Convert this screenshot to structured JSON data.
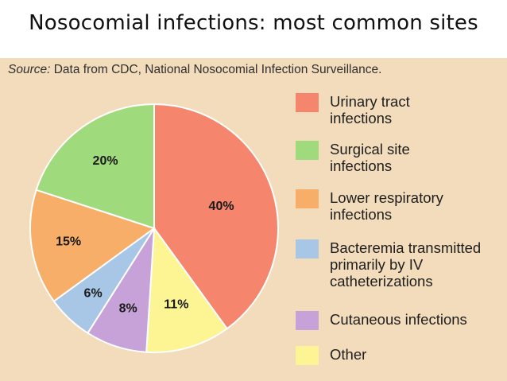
{
  "title": "Nosocomial infections: most common sites",
  "source": {
    "lead": "Source:",
    "text": "Data from CDC, National Nosocomial Infection Surveillance."
  },
  "chart_data": {
    "type": "pie",
    "title": "Nosocomial infections: most common sites",
    "categories": [
      "Urinary tract infections",
      "Other",
      "Cutaneous infections",
      "Bacteremia transmitted primarily by IV catheterizations",
      "Lower respiratory infections",
      "Surgical site infections"
    ],
    "values": [
      40,
      11,
      8,
      6,
      15,
      20
    ],
    "value_labels": [
      "40%",
      "11%",
      "8%",
      "6%",
      "15%",
      "20%"
    ],
    "colors": [
      "#f5856c",
      "#fdf593",
      "#c6a2d9",
      "#a8c6e5",
      "#f7ae68",
      "#9fda7c"
    ],
    "legend_position": "right"
  },
  "legend": {
    "items": [
      {
        "lines": [
          "Urinary tract",
          "infections"
        ],
        "color": "#f5856c"
      },
      {
        "lines": [
          "Surgical site",
          "infections"
        ],
        "color": "#9fda7c"
      },
      {
        "lines": [
          "Lower respiratory",
          "infections"
        ],
        "color": "#f7ae68"
      },
      {
        "lines": [
          "Bacteremia transmitted",
          "primarily by IV",
          "catheterizations"
        ],
        "color": "#a8c6e5"
      },
      {
        "lines": [
          "Cutaneous infections"
        ],
        "color": "#c6a2d9"
      },
      {
        "lines": [
          "Other"
        ],
        "color": "#fdf593"
      }
    ]
  }
}
